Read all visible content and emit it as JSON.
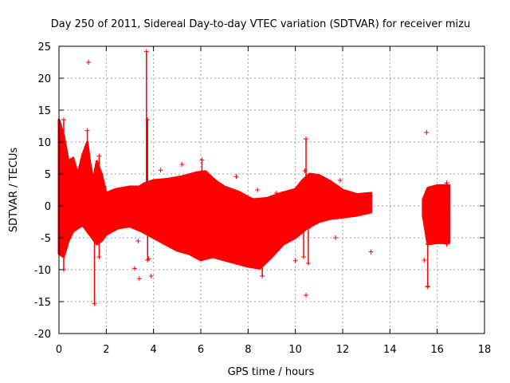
{
  "chart_data": {
    "type": "scatter",
    "title": "Day 250 of 2011, Sidereal Day-to-day VTEC variation (SDTVAR) for receiver mizu",
    "xlabel": "GPS time / hours",
    "ylabel": "SDTVAR / TECUs",
    "xlim": [
      0,
      18
    ],
    "ylim": [
      -20,
      25
    ],
    "xticks": [
      0,
      2,
      4,
      6,
      8,
      10,
      12,
      14,
      16,
      18
    ],
    "yticks": [
      -20,
      -15,
      -10,
      -5,
      0,
      5,
      10,
      15,
      20,
      25
    ],
    "grid": true,
    "marker": "+",
    "series_color": "#ff0000",
    "band_upper": [
      [
        0,
        13.5
      ],
      [
        0.2,
        11
      ],
      [
        0.4,
        7
      ],
      [
        0.6,
        7.5
      ],
      [
        0.8,
        5
      ],
      [
        1.0,
        8
      ],
      [
        1.2,
        10
      ],
      [
        1.3,
        7
      ],
      [
        1.45,
        4
      ],
      [
        1.6,
        7
      ],
      [
        1.8,
        5
      ],
      [
        2.0,
        2
      ],
      [
        2.4,
        2.6
      ],
      [
        3.0,
        3
      ],
      [
        3.4,
        3
      ],
      [
        3.6,
        3.5
      ],
      [
        4.0,
        4
      ],
      [
        4.6,
        4.2
      ],
      [
        5.2,
        4.6
      ],
      [
        5.8,
        5.2
      ],
      [
        6.2,
        5.4
      ],
      [
        6.6,
        4
      ],
      [
        7.0,
        3
      ],
      [
        7.6,
        2.2
      ],
      [
        8.2,
        1
      ],
      [
        8.8,
        1.2
      ],
      [
        9.4,
        2
      ],
      [
        10.0,
        2.6
      ],
      [
        10.3,
        4
      ],
      [
        10.6,
        5
      ],
      [
        11.0,
        4.8
      ],
      [
        11.5,
        3.8
      ],
      [
        12.0,
        2.5
      ],
      [
        12.6,
        1.8
      ],
      [
        13.2,
        2
      ]
    ],
    "band_lower": [
      [
        0,
        -7.5
      ],
      [
        0.2,
        -8
      ],
      [
        0.4,
        -5.5
      ],
      [
        0.6,
        -4
      ],
      [
        0.8,
        -3.5
      ],
      [
        1.0,
        -3
      ],
      [
        1.2,
        -4
      ],
      [
        1.4,
        -5
      ],
      [
        1.6,
        -6
      ],
      [
        1.8,
        -5.5
      ],
      [
        2.0,
        -4.5
      ],
      [
        2.5,
        -3.5
      ],
      [
        3.0,
        -3.2
      ],
      [
        3.5,
        -4
      ],
      [
        4.0,
        -5
      ],
      [
        4.5,
        -6
      ],
      [
        5.0,
        -7
      ],
      [
        5.5,
        -7.5
      ],
      [
        6.0,
        -8.5
      ],
      [
        6.5,
        -8
      ],
      [
        7.0,
        -8.5
      ],
      [
        7.5,
        -9
      ],
      [
        8.0,
        -9.5
      ],
      [
        8.5,
        -9.8
      ],
      [
        9.0,
        -8
      ],
      [
        9.5,
        -6
      ],
      [
        10.0,
        -5
      ],
      [
        10.5,
        -3.5
      ],
      [
        11.0,
        -2.5
      ],
      [
        11.5,
        -2
      ],
      [
        12.0,
        -1.8
      ],
      [
        12.6,
        -1.5
      ],
      [
        13.2,
        -1
      ]
    ],
    "band2_upper": [
      [
        15.4,
        1
      ],
      [
        15.6,
        2.8
      ],
      [
        16.0,
        3.2
      ],
      [
        16.5,
        3.2
      ]
    ],
    "band2_lower": [
      [
        15.4,
        -1.5
      ],
      [
        15.6,
        -6
      ],
      [
        16.0,
        -5.8
      ],
      [
        16.5,
        -5.8
      ]
    ],
    "spikes": [
      {
        "x": 0.2,
        "y0": -10,
        "y1": 13.5
      },
      {
        "x": 1.2,
        "y0": -3,
        "y1": 11.8
      },
      {
        "x": 1.5,
        "y0": -15.3,
        "y1": 1
      },
      {
        "x": 1.7,
        "y0": -8,
        "y1": 7.8
      },
      {
        "x": 3.7,
        "y0": -2,
        "y1": 24.2
      },
      {
        "x": 3.75,
        "y0": -8.5,
        "y1": 13.5
      },
      {
        "x": 6.05,
        "y0": 0,
        "y1": 7.2
      },
      {
        "x": 8.6,
        "y0": -11,
        "y1": -6
      },
      {
        "x": 10.35,
        "y0": -8,
        "y1": 4
      },
      {
        "x": 10.45,
        "y0": 2,
        "y1": 10.5
      },
      {
        "x": 10.55,
        "y0": -9,
        "y1": -3.5
      },
      {
        "x": 15.6,
        "y0": -12.7,
        "y1": -6
      },
      {
        "x": 16.4,
        "y0": -6,
        "y1": 3.6
      }
    ],
    "outliers": [
      [
        1.25,
        22.5
      ],
      [
        3.2,
        -9.8
      ],
      [
        3.4,
        -11.4
      ],
      [
        3.9,
        -11
      ],
      [
        3.8,
        -8.3
      ],
      [
        3.35,
        -5.5
      ],
      [
        4.3,
        5.6
      ],
      [
        5.2,
        6.5
      ],
      [
        7.5,
        4.6
      ],
      [
        7.8,
        -8.5
      ],
      [
        8.4,
        2.5
      ],
      [
        9.2,
        2
      ],
      [
        10.0,
        -8.6
      ],
      [
        10.45,
        -14
      ],
      [
        10.4,
        5.5
      ],
      [
        11.3,
        2.6
      ],
      [
        11.7,
        -5
      ],
      [
        11.9,
        4
      ],
      [
        13.2,
        -7.2
      ],
      [
        15.45,
        -8.5
      ],
      [
        15.55,
        11.5
      ],
      [
        15.6,
        -12.6
      ],
      [
        1.15,
        -0.8
      ],
      [
        0.55,
        6.2
      ],
      [
        2.8,
        2.3
      ]
    ]
  }
}
